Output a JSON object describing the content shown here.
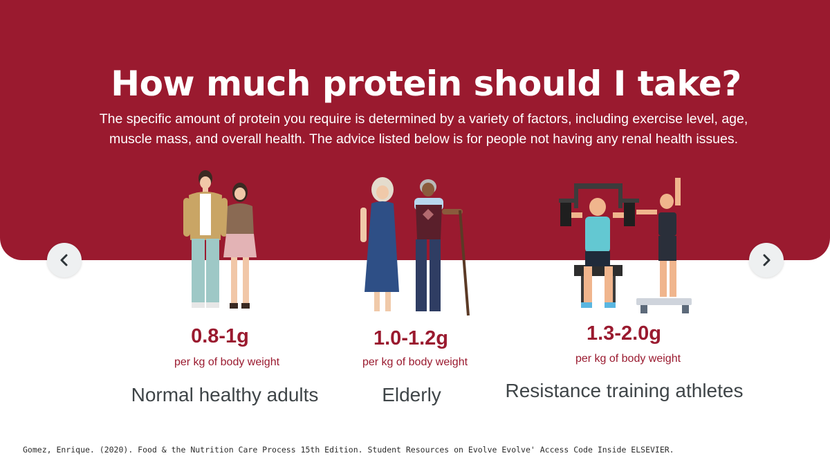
{
  "header": {
    "title": "How much protein should I take?",
    "subtitle": "The specific amount of protein you require is determined by a variety of factors, including exercise level, age, muscle mass, and overall health. The advice listed below is for people not having any renal health issues."
  },
  "nav": {
    "prev_icon": "chevron-left-icon",
    "next_icon": "chevron-right-icon"
  },
  "cards": [
    {
      "amount": "0.8-1g",
      "unit": "per kg of body weight",
      "label": "Normal healthy adults",
      "illustration": "young-couple-illustration"
    },
    {
      "amount": "1.0-1.2g",
      "unit": "per kg of body weight",
      "label": "Elderly",
      "illustration": "elderly-couple-illustration"
    },
    {
      "amount": "1.3-2.0g",
      "unit": "per kg of body weight",
      "label": "Resistance training athletes",
      "illustration": "gym-athletes-illustration"
    }
  ],
  "footer": {
    "citation": "Gomez, Enrique. (2020). Food & the Nutrition Care Process 15th Edition. Student Resources on Evolve Evolve' Access Code Inside ELSEVIER."
  },
  "colors": {
    "brand": "#9a1a2f",
    "text_dark": "#3f4548",
    "nav_bg": "#eef0f1"
  }
}
